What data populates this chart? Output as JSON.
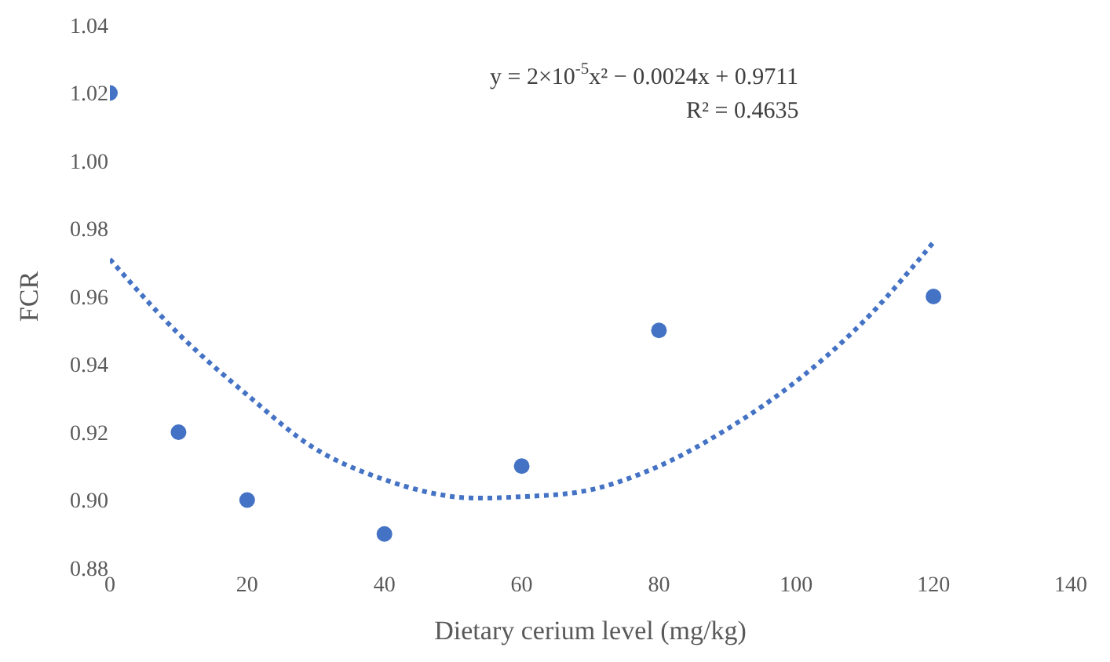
{
  "chart_data": {
    "type": "scatter",
    "xlabel": "Dietary cerium level (mg/kg)",
    "ylabel": "FCR",
    "annotations": [
      "y = 2×10$^{-5}$x² − 0.0024x + 0.9711",
      "R² = 0.4635"
    ],
    "xlim": [
      0,
      140
    ],
    "xticks": [
      0,
      20,
      40,
      60,
      80,
      100,
      120,
      140
    ],
    "ylim": [
      0.88,
      1.04
    ],
    "yticks": [
      {
        "value": 0.88,
        "label": "0.88"
      },
      {
        "value": 0.9,
        "label": "0.90"
      },
      {
        "value": 0.92,
        "label": "0.92"
      },
      {
        "value": 0.94,
        "label": "0.94"
      },
      {
        "value": 0.96,
        "label": "0.96"
      },
      {
        "value": 0.98,
        "label": "0.98"
      },
      {
        "value": 1.0,
        "label": "1.00"
      },
      {
        "value": 1.02,
        "label": "1.02"
      },
      {
        "value": 1.04,
        "label": "1.04"
      }
    ],
    "legend": false,
    "series": [
      {
        "color": "#4472c4",
        "marker": "circle",
        "x": [
          0,
          10,
          20,
          40,
          60,
          80,
          120
        ],
        "values": [
          1.02,
          0.92,
          0.9,
          0.89,
          0.91,
          0.95,
          0.96
        ]
      },
      {
        "type": "line",
        "color": "#4472c4",
        "line_style": "dotted",
        "x": [
          0,
          10,
          20,
          30,
          40,
          50,
          60,
          70,
          80,
          90,
          100,
          110,
          120
        ],
        "values": [
          0.971,
          0.949,
          0.931,
          0.915,
          0.906,
          0.901,
          0.901,
          0.903,
          0.91,
          0.921,
          0.935,
          0.953,
          0.976
        ]
      }
    ]
  }
}
